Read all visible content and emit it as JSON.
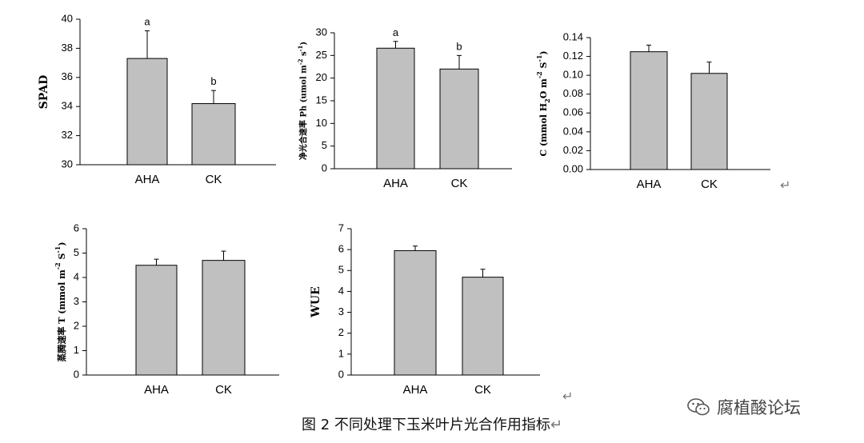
{
  "chart_data": [
    {
      "type": "bar",
      "ylabel": "SPAD",
      "categories": [
        "AHA",
        "CK"
      ],
      "values": [
        37.3,
        34.2
      ],
      "errors": [
        1.9,
        0.9
      ],
      "letters": [
        "a",
        "b"
      ],
      "ylim": [
        30,
        40
      ],
      "yticks": [
        "30",
        "32",
        "34",
        "36",
        "38",
        "40"
      ],
      "grid": false
    },
    {
      "type": "bar",
      "ylabel": "净光合速率 Ph (umol m-2 s-1)",
      "categories": [
        "AHA",
        "CK"
      ],
      "values": [
        26.6,
        22.0
      ],
      "errors": [
        1.5,
        3.0
      ],
      "letters": [
        "a",
        "b"
      ],
      "ylim": [
        0,
        30
      ],
      "yticks": [
        "0",
        "5",
        "10",
        "15",
        "20",
        "25",
        "30"
      ],
      "grid": false
    },
    {
      "type": "bar",
      "ylabel": "C (mmol H2O m-2 S-1)",
      "categories": [
        "AHA",
        "CK"
      ],
      "values": [
        0.125,
        0.102
      ],
      "errors": [
        0.007,
        0.012
      ],
      "ylim": [
        0,
        0.14
      ],
      "yticks": [
        "0.00",
        "0.02",
        "0.04",
        "0.06",
        "0.08",
        "0.10",
        "0.12",
        "0.14"
      ],
      "grid": false
    },
    {
      "type": "bar",
      "ylabel": "蒸腾速率 T (mmol m-2 S-1)",
      "categories": [
        "AHA",
        "CK"
      ],
      "values": [
        4.5,
        4.7
      ],
      "errors": [
        0.25,
        0.38
      ],
      "ylim": [
        0,
        6
      ],
      "yticks": [
        "0",
        "1",
        "2",
        "3",
        "4",
        "5",
        "6"
      ],
      "grid": false
    },
    {
      "type": "bar",
      "ylabel": "WUE",
      "categories": [
        "AHA",
        "CK"
      ],
      "values": [
        5.95,
        4.68
      ],
      "errors": [
        0.22,
        0.38
      ],
      "ylim": [
        0,
        7
      ],
      "yticks": [
        "0",
        "1",
        "2",
        "3",
        "4",
        "5",
        "6",
        "7"
      ],
      "grid": false
    }
  ],
  "caption": "图 2  不同处理下玉米叶片光合作用指标",
  "watermark": {
    "text": "腐植酸论坛",
    "icon": "wechat-icon"
  },
  "return_mark": "↵",
  "colors": {
    "bar_fill": "#c0c0c0",
    "bar_stroke": "#000000"
  }
}
